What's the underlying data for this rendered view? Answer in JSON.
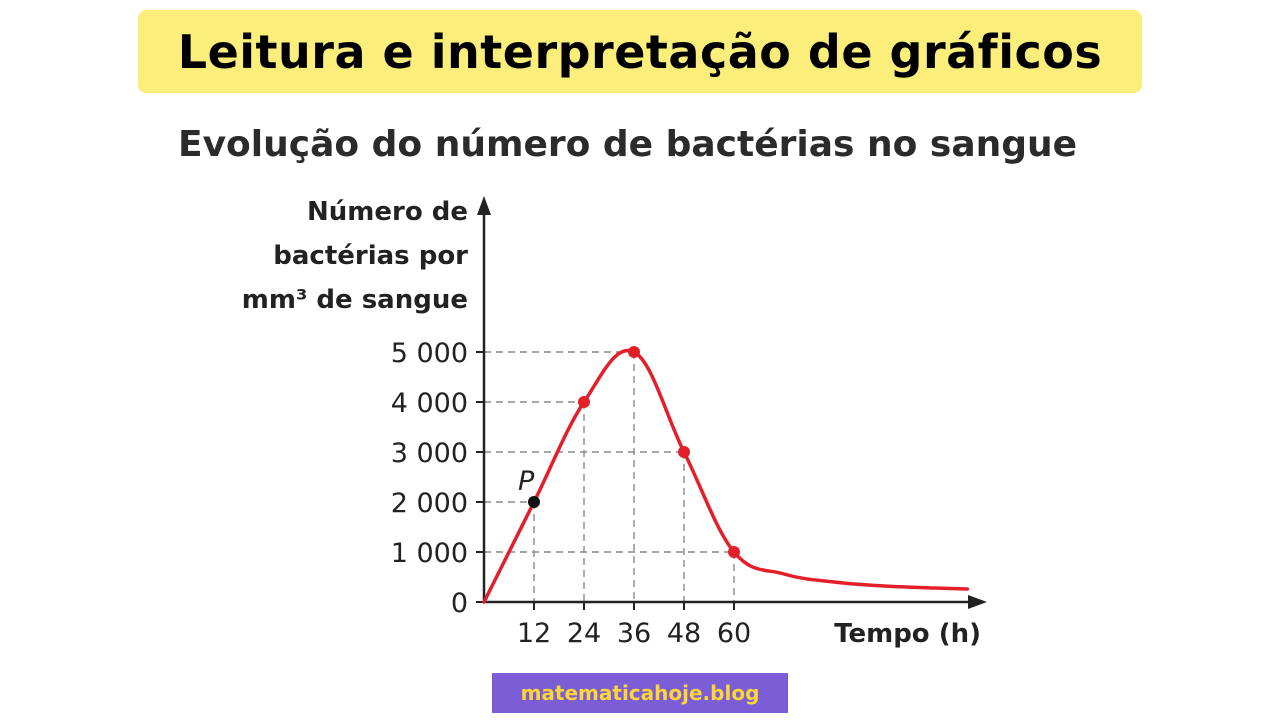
{
  "header": {
    "title": "Leitura e interpretação de gráficos"
  },
  "footer": {
    "site": "matematicahoje.blog"
  },
  "colors": {
    "banner_bg": "#fbee7a",
    "curve": "#e3202a",
    "point_marker": "#e3202a",
    "point_p": "#111111",
    "footer_bg": "#7b5ed6",
    "footer_text": "#ffd633"
  },
  "chart_data": {
    "type": "line",
    "title": "Evolução do número de bactérias no sangue",
    "ylabel_lines": [
      "Número de",
      "bactérias por",
      "mm³ de sangue"
    ],
    "xlabel": "Tempo (h)",
    "x_ticks": [
      12,
      24,
      36,
      48,
      60
    ],
    "y_ticks": [
      {
        "value": 0,
        "label": "0"
      },
      {
        "value": 1000,
        "label": "1 000"
      },
      {
        "value": 2000,
        "label": "2 000"
      },
      {
        "value": 3000,
        "label": "3 000"
      },
      {
        "value": 4000,
        "label": "4 000"
      },
      {
        "value": 5000,
        "label": "5 000"
      }
    ],
    "xlim": [
      0,
      120
    ],
    "ylim": [
      0,
      5000
    ],
    "curve": [
      {
        "x": 0,
        "y": 0
      },
      {
        "x": 12,
        "y": 2000
      },
      {
        "x": 24,
        "y": 4000
      },
      {
        "x": 36,
        "y": 5000
      },
      {
        "x": 48,
        "y": 3000
      },
      {
        "x": 60,
        "y": 1000
      },
      {
        "x": 72,
        "y": 560
      },
      {
        "x": 84,
        "y": 400
      },
      {
        "x": 96,
        "y": 320
      },
      {
        "x": 108,
        "y": 280
      },
      {
        "x": 116,
        "y": 260
      }
    ],
    "marked_points": [
      {
        "x": 12,
        "y": 2000,
        "label": "P",
        "color": "#111111"
      },
      {
        "x": 24,
        "y": 4000,
        "label": "",
        "color": "#e3202a"
      },
      {
        "x": 36,
        "y": 5000,
        "label": "",
        "color": "#e3202a"
      },
      {
        "x": 48,
        "y": 3000,
        "label": "",
        "color": "#e3202a"
      },
      {
        "x": 60,
        "y": 1000,
        "label": "",
        "color": "#e3202a"
      }
    ],
    "guide_lines": true
  }
}
